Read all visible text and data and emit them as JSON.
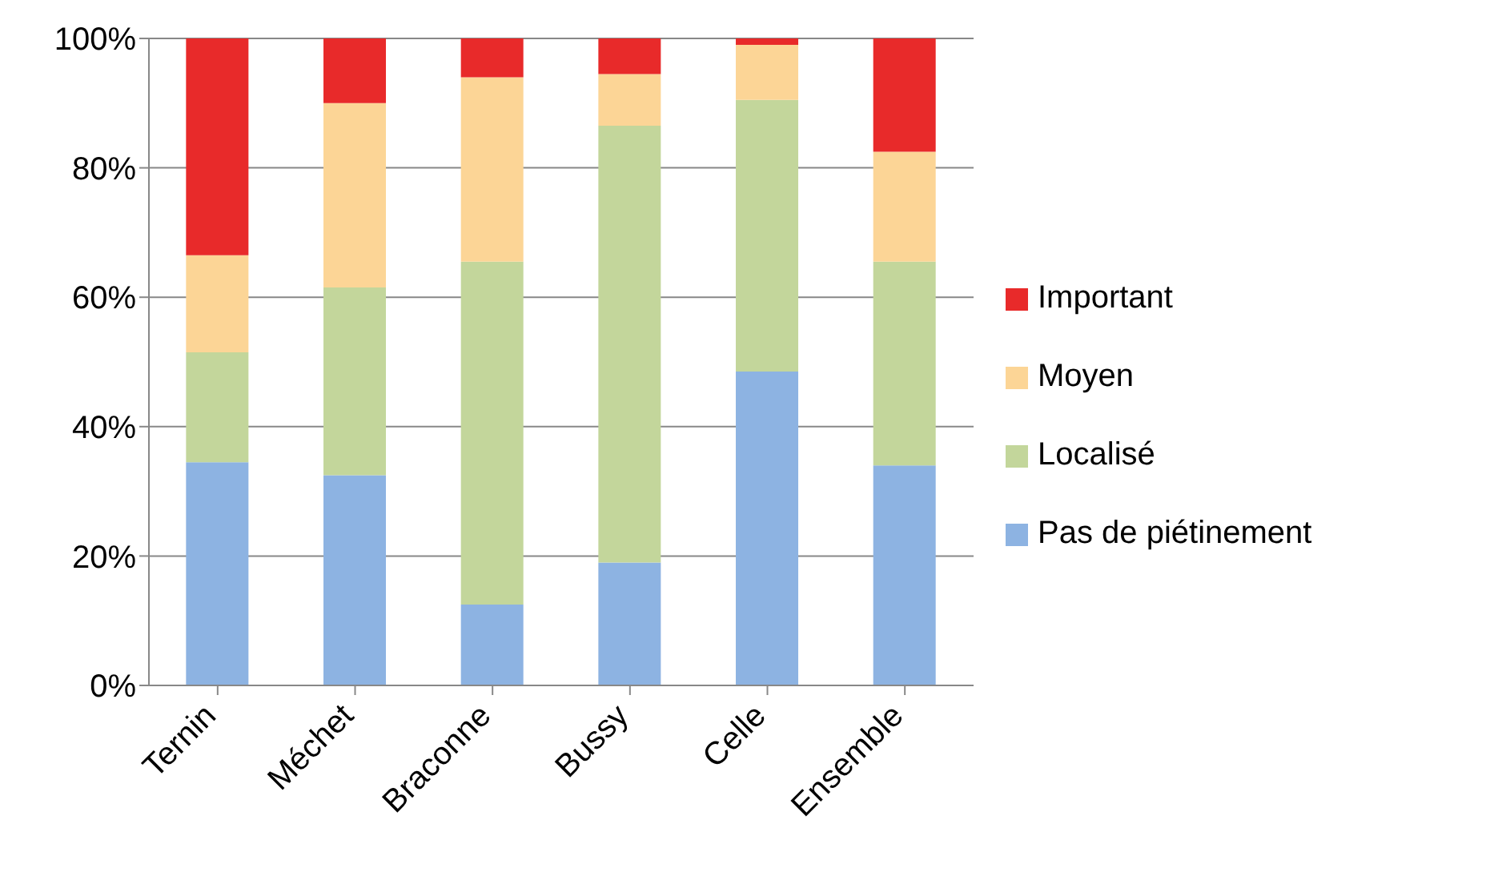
{
  "chart_data": {
    "type": "bar",
    "stacked": true,
    "categories": [
      "Ternin",
      "Méchet",
      "Braconne",
      "Bussy",
      "Celle",
      "Ensemble"
    ],
    "series": [
      {
        "name": "Pas de piétinement",
        "color": "#8db3e2",
        "values": [
          34.5,
          32.5,
          12.5,
          19,
          48.5,
          34
        ]
      },
      {
        "name": "Localisé",
        "color": "#c3d69b",
        "values": [
          17,
          29,
          53,
          67.5,
          42,
          31.5
        ]
      },
      {
        "name": "Moyen",
        "color": "#fcd596",
        "values": [
          15,
          28.5,
          28.5,
          8,
          8.5,
          17
        ]
      },
      {
        "name": "Important",
        "color": "#e82a2a",
        "values": [
          33.5,
          10,
          6,
          5.5,
          1,
          17.5
        ]
      }
    ],
    "ylim": [
      0,
      100
    ],
    "yticks": [
      {
        "value": 0,
        "label": "0%"
      },
      {
        "value": 20,
        "label": "20%"
      },
      {
        "value": 40,
        "label": "40%"
      },
      {
        "value": 60,
        "label": "60%"
      },
      {
        "value": 80,
        "label": "80%"
      },
      {
        "value": 100,
        "label": "100%"
      }
    ],
    "grid": "y",
    "legend": "right"
  }
}
